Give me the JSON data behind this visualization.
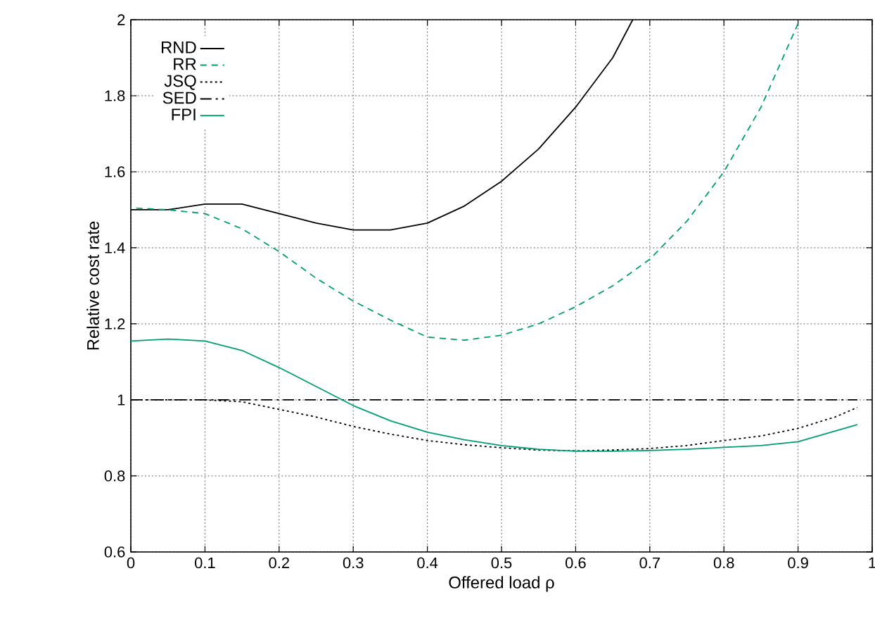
{
  "chart_data": {
    "type": "line",
    "xlabel": "Offered load ρ",
    "ylabel": "Relative cost rate",
    "xlim": [
      0,
      1
    ],
    "ylim": [
      0.6,
      2
    ],
    "xticks": [
      0,
      0.1,
      0.2,
      0.3,
      0.4,
      0.5,
      0.6,
      0.7,
      0.8,
      0.9,
      1
    ],
    "yticks": [
      0.6,
      0.8,
      1,
      1.2,
      1.4,
      1.6,
      1.8,
      2
    ],
    "grid": true,
    "legend": "top left",
    "series": [
      {
        "name": "RND",
        "color": "#000000",
        "line_style": "solid",
        "x": [
          0,
          0.05,
          0.1,
          0.15,
          0.2,
          0.25,
          0.3,
          0.35,
          0.4,
          0.45,
          0.5,
          0.55,
          0.6,
          0.65,
          0.677
        ],
        "values": [
          1.5,
          1.5,
          1.515,
          1.515,
          1.49,
          1.465,
          1.447,
          1.447,
          1.465,
          1.51,
          1.575,
          1.66,
          1.77,
          1.9,
          2.0
        ]
      },
      {
        "name": "RR",
        "color": "#009e73",
        "line_style": "dashed",
        "x": [
          0,
          0.05,
          0.1,
          0.15,
          0.2,
          0.25,
          0.3,
          0.35,
          0.4,
          0.45,
          0.5,
          0.55,
          0.6,
          0.65,
          0.7,
          0.75,
          0.8,
          0.85,
          0.9
        ],
        "values": [
          1.505,
          1.5,
          1.49,
          1.45,
          1.39,
          1.32,
          1.26,
          1.21,
          1.165,
          1.157,
          1.17,
          1.2,
          1.245,
          1.3,
          1.37,
          1.47,
          1.6,
          1.77,
          1.99
        ]
      },
      {
        "name": "JSQ",
        "color": "#000000",
        "line_style": "dotted",
        "x": [
          0,
          0.1,
          0.15,
          0.2,
          0.25,
          0.3,
          0.35,
          0.4,
          0.45,
          0.5,
          0.55,
          0.6,
          0.65,
          0.7,
          0.75,
          0.8,
          0.85,
          0.9,
          0.95,
          0.98
        ],
        "values": [
          1.0,
          1.0,
          0.995,
          0.975,
          0.955,
          0.93,
          0.91,
          0.893,
          0.882,
          0.874,
          0.868,
          0.866,
          0.868,
          0.872,
          0.88,
          0.893,
          0.905,
          0.925,
          0.955,
          0.98
        ]
      },
      {
        "name": "SED",
        "color": "#000000",
        "line_style": "dashdot",
        "x": [
          0,
          0.98
        ],
        "values": [
          1.0,
          1.0
        ]
      },
      {
        "name": "FPI",
        "color": "#009e73",
        "line_style": "solid",
        "x": [
          0,
          0.05,
          0.1,
          0.15,
          0.2,
          0.25,
          0.3,
          0.35,
          0.4,
          0.45,
          0.5,
          0.55,
          0.6,
          0.65,
          0.7,
          0.75,
          0.8,
          0.85,
          0.9,
          0.98
        ],
        "values": [
          1.155,
          1.16,
          1.155,
          1.13,
          1.085,
          1.035,
          0.985,
          0.945,
          0.915,
          0.895,
          0.88,
          0.87,
          0.865,
          0.865,
          0.867,
          0.87,
          0.875,
          0.88,
          0.89,
          0.935
        ]
      }
    ]
  }
}
